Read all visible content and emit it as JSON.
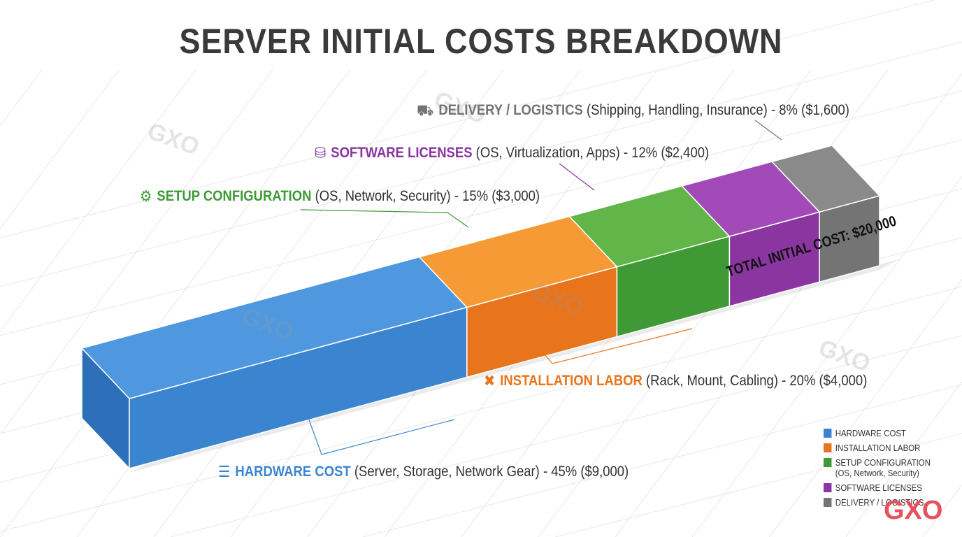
{
  "chart_data": {
    "type": "bar",
    "title": "SERVER INITIAL COSTS BREAKDOWN",
    "orientation": "stacked-horizontal-3d",
    "total_label": "TOTAL INITIAL COST: $20,000",
    "total": 20000,
    "legend_position": "bottom-right",
    "series": [
      {
        "name": "HARDWARE COST",
        "detail": "(Server, Storage, Network Gear) - 45% ($9,000)",
        "percent": 45,
        "value": 9000,
        "color": "#3b85d0",
        "top": "#4f98e0",
        "icon": "server-icon",
        "legend": "HARDWARE COST",
        "legend_sub": ""
      },
      {
        "name": "INSTALLATION LABOR",
        "detail": "(Rack, Mount, Cabling) - 20% ($4,000)",
        "percent": 20,
        "value": 4000,
        "color": "#e8741c",
        "top": "#f59a34",
        "icon": "tools-icon",
        "legend": "INSTALLATION LABOR",
        "legend_sub": ""
      },
      {
        "name": "SETUP CONFIGURATION",
        "detail": "(OS, Network, Security) - 15% ($3,000)",
        "percent": 15,
        "value": 3000,
        "color": "#3f9a35",
        "top": "#62b548",
        "icon": "gear-icon",
        "legend": "SETUP CONFIGURATION",
        "legend_sub": "(OS, Network, Security)"
      },
      {
        "name": "SOFTWARE LICENSES",
        "detail": "(OS, Virtualization, Apps) - 12% ($2,400)",
        "percent": 12,
        "value": 2400,
        "color": "#8a35a0",
        "top": "#a24bb8",
        "icon": "database-icon",
        "legend": "SOFTWARE LICENSES",
        "legend_sub": ""
      },
      {
        "name": "DELIVERY / LOGISTICS",
        "detail": "(Shipping, Handling, Insurance) - 8% ($1,600)",
        "percent": 8,
        "value": 1600,
        "color": "#747474",
        "top": "#8a8a8a",
        "icon": "truck-icon",
        "legend": "DELIVERY / LOGISTICS",
        "legend_sub": ""
      }
    ]
  },
  "watermark": "GXO",
  "logo": "GXO"
}
